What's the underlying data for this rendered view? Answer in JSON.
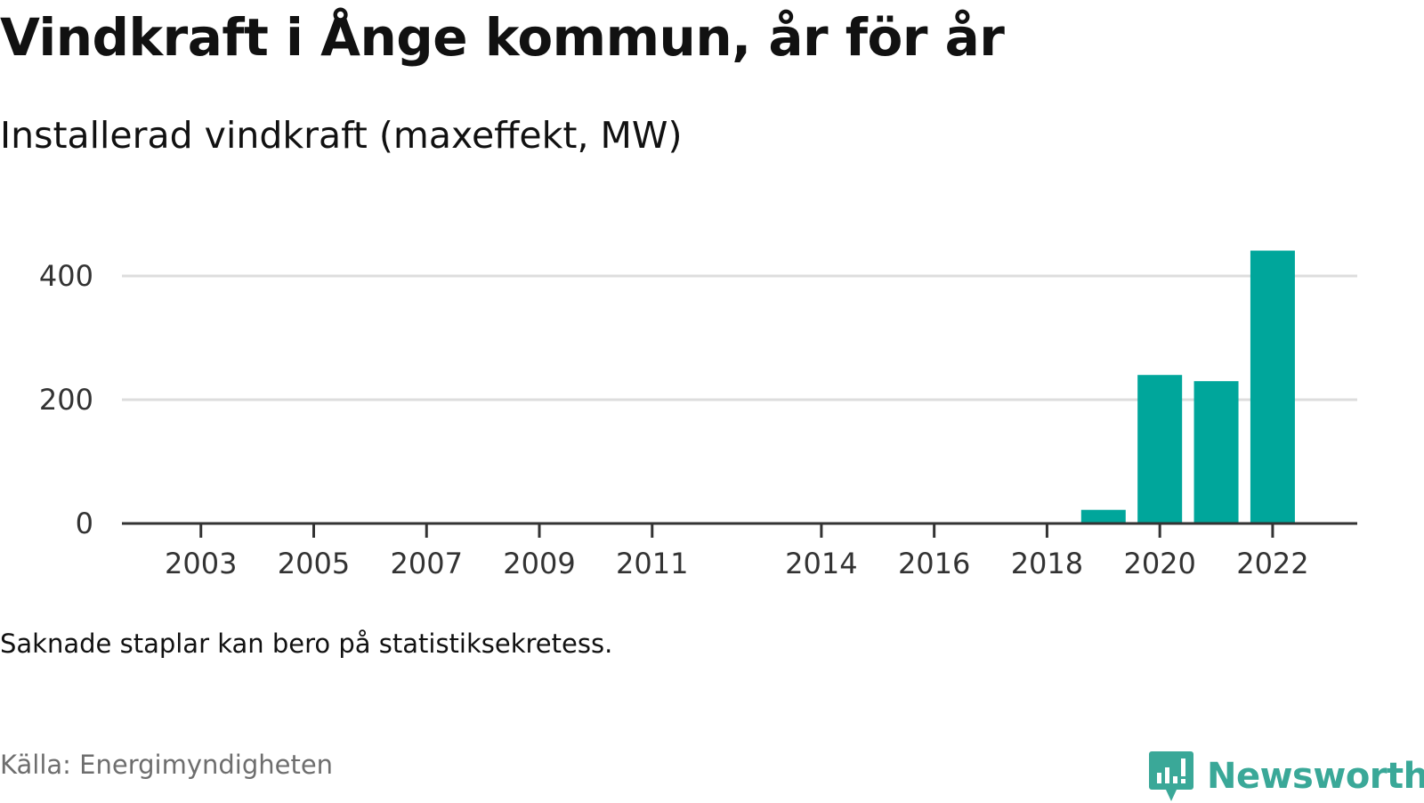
{
  "title": "Vindkraft i Ånge kommun, år för år",
  "subtitle": "Installerad vindkraft (maxeffekt, MW)",
  "note": "Saknade staplar kan bero på statistiksekretess.",
  "source": "Källa: Energimyndigheten",
  "brand": {
    "name": "Newsworthy",
    "logo_icon": "newsworthy-chart-bubble-icon",
    "color": "#3aa898"
  },
  "chart_data": {
    "type": "bar",
    "categories": [
      "2019",
      "2020",
      "2021",
      "2022"
    ],
    "values": [
      22,
      240,
      230,
      441
    ],
    "x_tick_labels": [
      "2003",
      "2005",
      "2007",
      "2009",
      "2011",
      "2014",
      "2016",
      "2018",
      "2020",
      "2022"
    ],
    "x_range": [
      2001.6,
      2023.5
    ],
    "y_ticks": [
      0,
      200,
      400
    ],
    "y_tick_labels": [
      "0",
      "200",
      "400"
    ],
    "ylim": [
      0,
      450
    ],
    "grid": true,
    "bar_color": "#00a69b",
    "grid_color": "#dddddd",
    "axis_color": "#333333"
  }
}
